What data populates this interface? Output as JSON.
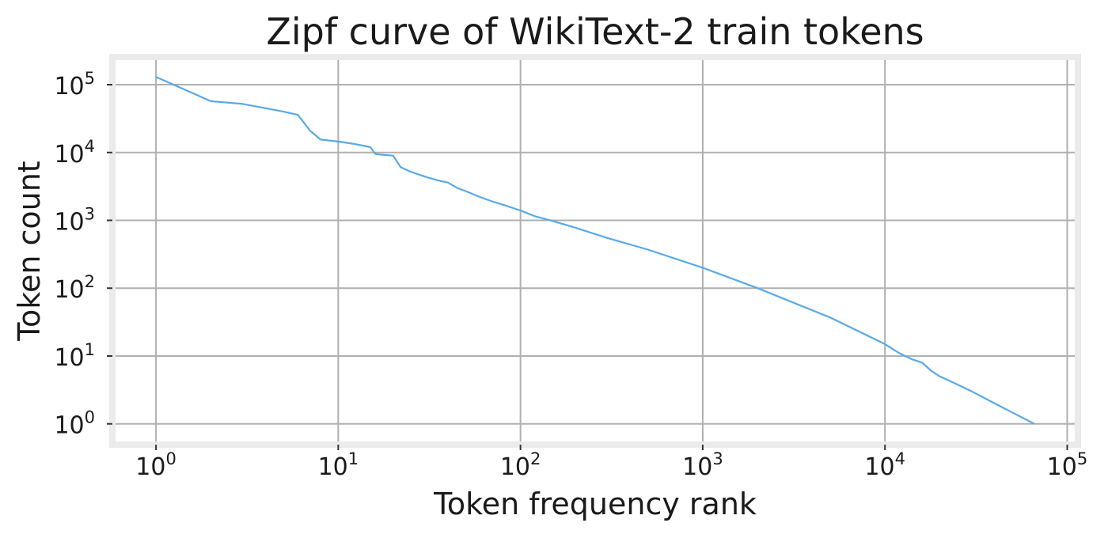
{
  "chart_data": {
    "type": "line",
    "title": "Zipf curve of WikiText-2 train tokens",
    "xlabel": "Token frequency rank",
    "ylabel": "Token count",
    "xscale": "log",
    "yscale": "log",
    "xlim": [
      0.6,
      110000
    ],
    "ylim": [
      0.55,
      230000
    ],
    "grid": true,
    "line_color": "#5aa9e6",
    "x_ticks": [
      {
        "value": 1,
        "base": "10",
        "exp": "0"
      },
      {
        "value": 10,
        "base": "10",
        "exp": "1"
      },
      {
        "value": 100,
        "base": "10",
        "exp": "2"
      },
      {
        "value": 1000,
        "base": "10",
        "exp": "3"
      },
      {
        "value": 10000,
        "base": "10",
        "exp": "4"
      },
      {
        "value": 100000,
        "base": "10",
        "exp": "5"
      }
    ],
    "y_ticks": [
      {
        "value": 1,
        "base": "10",
        "exp": "0"
      },
      {
        "value": 10,
        "base": "10",
        "exp": "1"
      },
      {
        "value": 100,
        "base": "10",
        "exp": "2"
      },
      {
        "value": 1000,
        "base": "10",
        "exp": "3"
      },
      {
        "value": 10000,
        "base": "10",
        "exp": "4"
      },
      {
        "value": 100000,
        "base": "10",
        "exp": "5"
      }
    ],
    "x": [
      1,
      2,
      3,
      4,
      5,
      6,
      7,
      8,
      10,
      12,
      14,
      15,
      16,
      18,
      20,
      22,
      25,
      28,
      30,
      35,
      40,
      45,
      50,
      60,
      70,
      80,
      100,
      120,
      150,
      200,
      300,
      500,
      1000,
      2000,
      5000,
      10000,
      12000,
      14000,
      16000,
      18000,
      20000,
      24000,
      30000,
      40000,
      66000
    ],
    "y": [
      130000,
      57000,
      52000,
      45000,
      40000,
      36000,
      21000,
      15500,
      14500,
      13500,
      12500,
      12000,
      9500,
      9200,
      9000,
      6100,
      5200,
      4700,
      4400,
      3900,
      3600,
      3000,
      2700,
      2200,
      1900,
      1700,
      1400,
      1150,
      980,
      780,
      550,
      370,
      200,
      100,
      37,
      15,
      11,
      9,
      8,
      6,
      5,
      4,
      3,
      2,
      1
    ]
  }
}
